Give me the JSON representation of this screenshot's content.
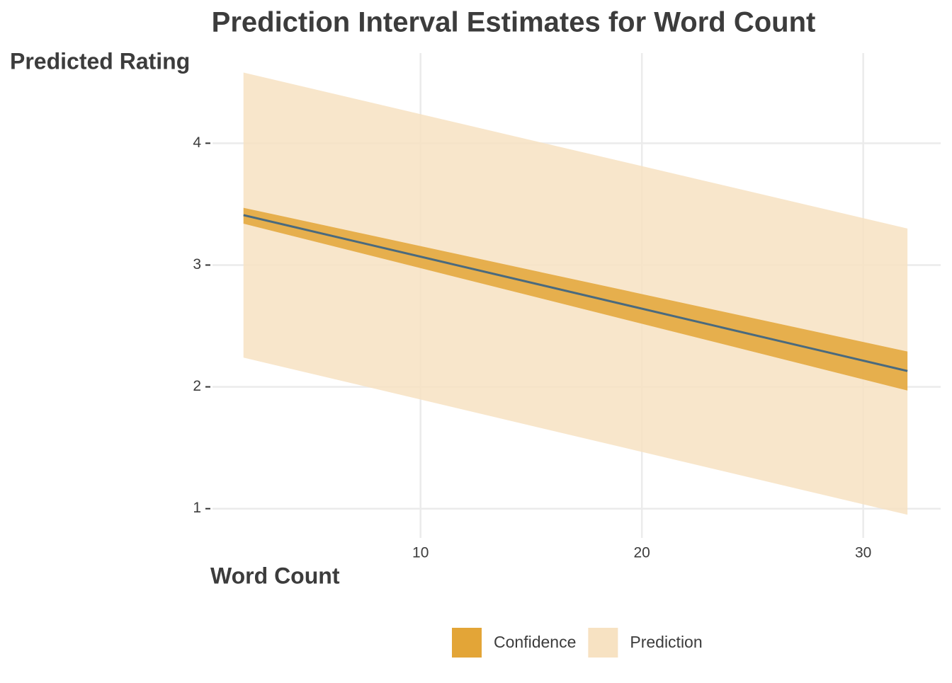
{
  "chart_data": {
    "type": "line",
    "title": "Prediction Interval Estimates for Word Count",
    "x_label": "Word Count",
    "y_label": "Predicted Rating",
    "x": [
      2,
      32
    ],
    "fit": {
      "color": "#4a6a7e",
      "values": [
        3.41,
        2.13
      ]
    },
    "bands": [
      {
        "name": "Confidence",
        "color": "#e3a537",
        "lower": [
          3.34,
          1.97
        ],
        "upper": [
          3.47,
          2.29
        ]
      },
      {
        "name": "Prediction",
        "color": "#f7e2c2",
        "lower": [
          2.24,
          0.95
        ],
        "upper": [
          4.58,
          3.3
        ]
      }
    ],
    "xlim": [
      0.6,
      33.5
    ],
    "ylim": [
      0.76,
      4.74
    ],
    "xticks": [
      10,
      20,
      30
    ],
    "yticks": [
      1,
      2,
      3,
      4
    ],
    "grid": true,
    "legend": "bottom"
  }
}
